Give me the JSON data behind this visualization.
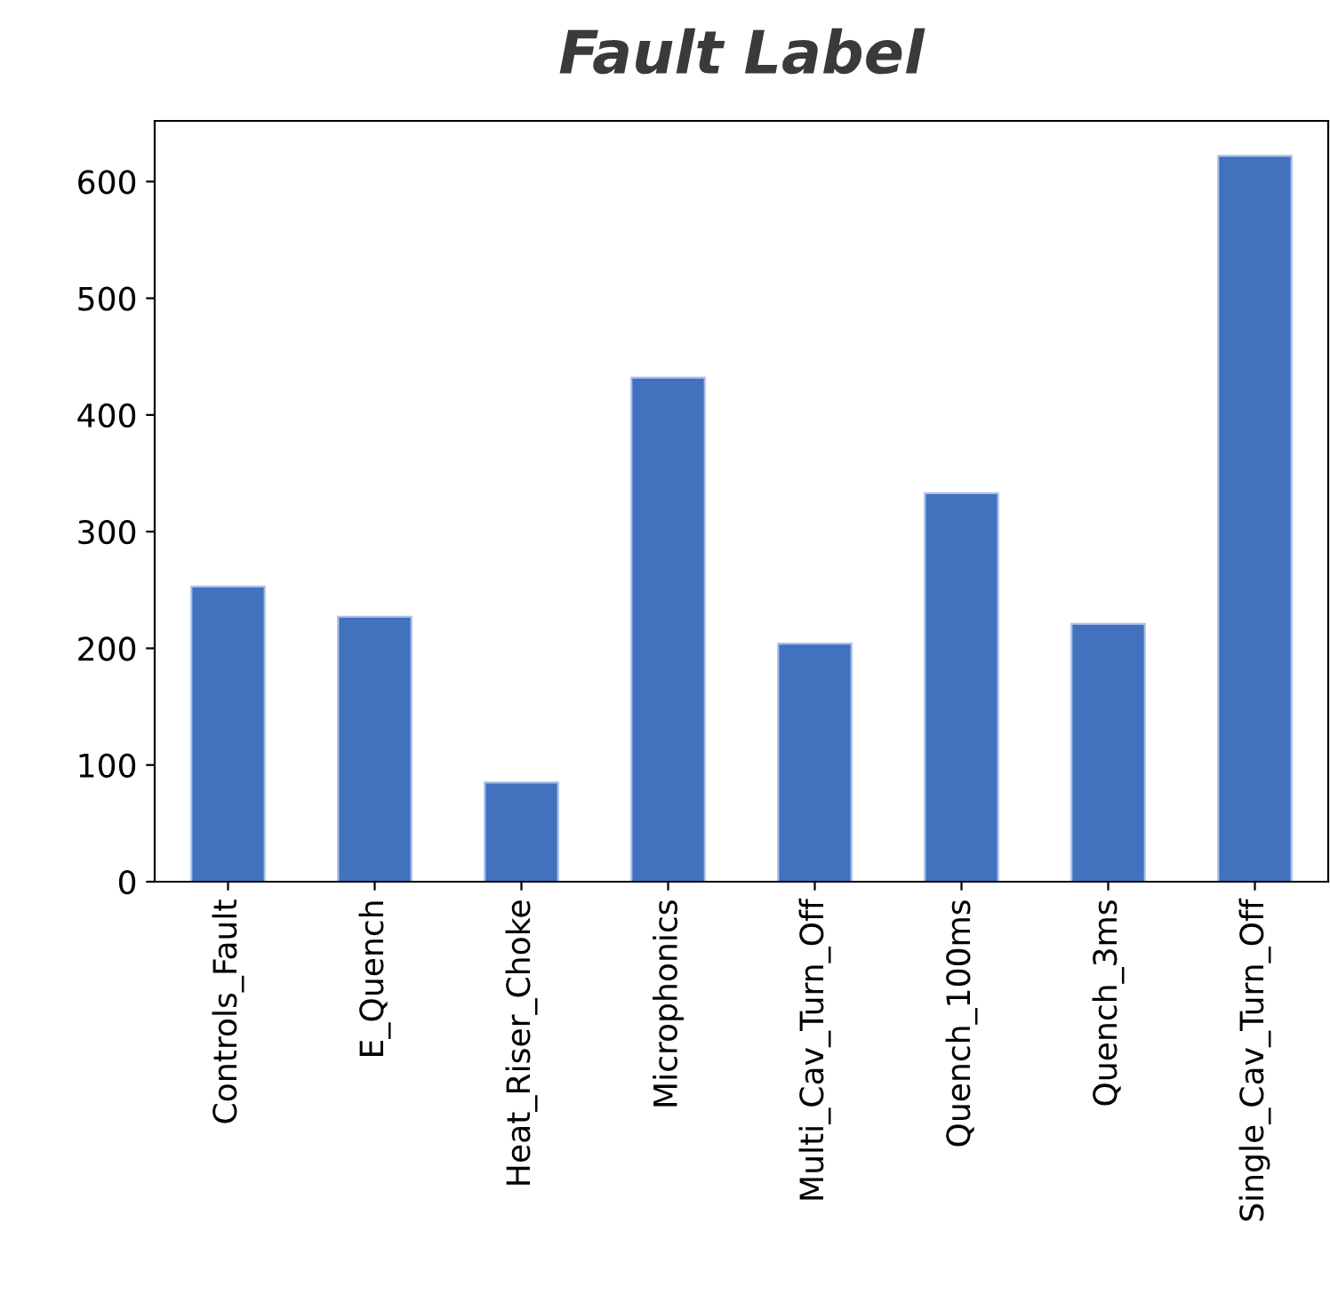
{
  "chart_data": {
    "type": "bar",
    "title": "Fault Label",
    "categories": [
      "Controls_Fault",
      "E_Quench",
      "Heat_Riser_Choke",
      "Microphonics",
      "Multi_Cav_Turn_Off",
      "Quench_100ms",
      "Quench_3ms",
      "Single_Cav_Turn_Off"
    ],
    "values": [
      253,
      227,
      85,
      432,
      204,
      333,
      221,
      622
    ],
    "color": "#4271be",
    "ylim": [
      0,
      652
    ],
    "yticks": [
      0,
      100,
      200,
      300,
      400,
      500,
      600
    ],
    "grid": false,
    "legend": false
  }
}
